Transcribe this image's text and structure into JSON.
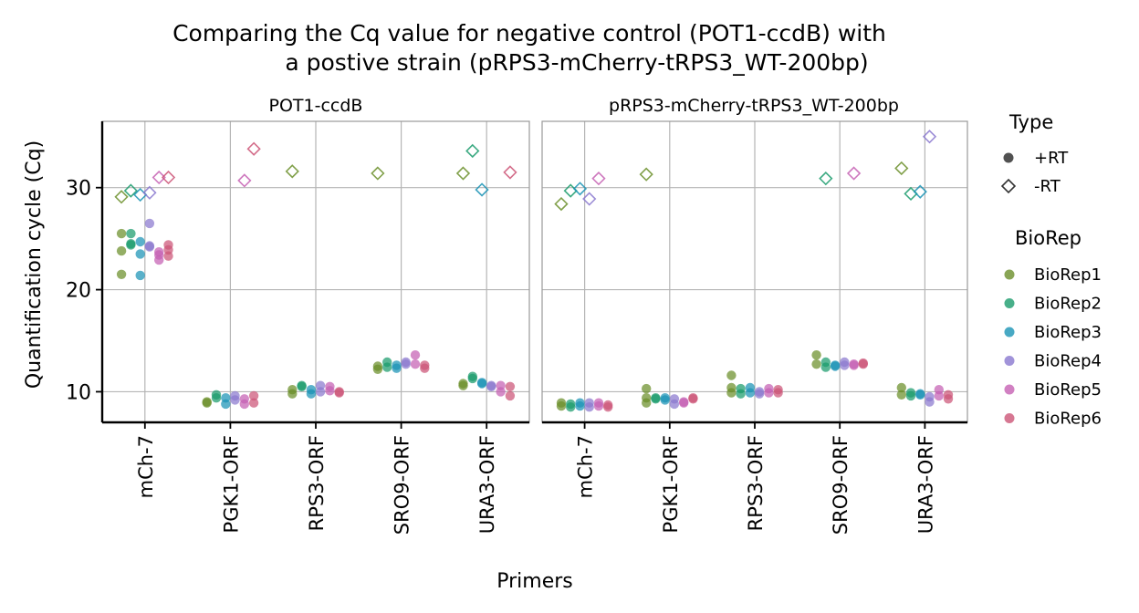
{
  "chart_data": {
    "type": "scatter",
    "title_line1": "Comparing the Cq value for negative control (POT1-ccdB) with",
    "title_line2": "a postive strain (pRPS3-mCherry-tRPS3_WT-200bp)",
    "xlabel": "Primers",
    "ylabel": "Quantification cycle (Cq)",
    "categories": [
      "mCh-7",
      "PGK1-ORF",
      "RPS3-ORF",
      "SRO9-ORF",
      "URA3-ORF"
    ],
    "ylim": [
      7,
      36.5
    ],
    "yticks": [
      10,
      20,
      30
    ],
    "grid": true,
    "legend_placement": "right",
    "type_legend": {
      "title": "Type",
      "items": [
        {
          "label": "+RT",
          "shape": "circle"
        },
        {
          "label": "-RT",
          "shape": "diamond"
        }
      ]
    },
    "biorep_legend": {
      "title": "BioRep",
      "items": [
        {
          "label": "BioRep1",
          "color": "#6b8f2a"
        },
        {
          "label": "BioRep2",
          "color": "#1a9b6c"
        },
        {
          "label": "BioRep3",
          "color": "#1a93b5"
        },
        {
          "label": "BioRep4",
          "color": "#8a78cf"
        },
        {
          "label": "BioRep5",
          "color": "#c560b3"
        },
        {
          "label": "BioRep6",
          "color": "#cc5577"
        }
      ]
    },
    "facets": [
      {
        "label": "POT1-ccdB",
        "points": [
          {
            "cat": 0,
            "rep": 1,
            "type": "+RT",
            "y": 25.5
          },
          {
            "cat": 0,
            "rep": 1,
            "type": "+RT",
            "y": 23.8
          },
          {
            "cat": 0,
            "rep": 1,
            "type": "+RT",
            "y": 21.5
          },
          {
            "cat": 0,
            "rep": 2,
            "type": "+RT",
            "y": 25.5
          },
          {
            "cat": 0,
            "rep": 2,
            "type": "+RT",
            "y": 24.4
          },
          {
            "cat": 0,
            "rep": 2,
            "type": "+RT",
            "y": 24.5
          },
          {
            "cat": 0,
            "rep": 3,
            "type": "+RT",
            "y": 24.7
          },
          {
            "cat": 0,
            "rep": 3,
            "type": "+RT",
            "y": 23.5
          },
          {
            "cat": 0,
            "rep": 3,
            "type": "+RT",
            "y": 21.4
          },
          {
            "cat": 0,
            "rep": 4,
            "type": "+RT",
            "y": 26.5
          },
          {
            "cat": 0,
            "rep": 4,
            "type": "+RT",
            "y": 24.3
          },
          {
            "cat": 0,
            "rep": 4,
            "type": "+RT",
            "y": 24.2
          },
          {
            "cat": 0,
            "rep": 5,
            "type": "+RT",
            "y": 23.7
          },
          {
            "cat": 0,
            "rep": 5,
            "type": "+RT",
            "y": 23.4
          },
          {
            "cat": 0,
            "rep": 5,
            "type": "+RT",
            "y": 22.9
          },
          {
            "cat": 0,
            "rep": 6,
            "type": "+RT",
            "y": 24.4
          },
          {
            "cat": 0,
            "rep": 6,
            "type": "+RT",
            "y": 23.9
          },
          {
            "cat": 0,
            "rep": 6,
            "type": "+RT",
            "y": 23.3
          },
          {
            "cat": 0,
            "rep": 1,
            "type": "-RT",
            "y": 29.1
          },
          {
            "cat": 0,
            "rep": 2,
            "type": "-RT",
            "y": 29.7
          },
          {
            "cat": 0,
            "rep": 3,
            "type": "-RT",
            "y": 29.3
          },
          {
            "cat": 0,
            "rep": 4,
            "type": "-RT",
            "y": 29.5
          },
          {
            "cat": 0,
            "rep": 5,
            "type": "-RT",
            "y": 31.0
          },
          {
            "cat": 0,
            "rep": 6,
            "type": "-RT",
            "y": 31.0
          },
          {
            "cat": 1,
            "rep": 1,
            "type": "+RT",
            "y": 9.0
          },
          {
            "cat": 1,
            "rep": 1,
            "type": "+RT",
            "y": 8.9
          },
          {
            "cat": 1,
            "rep": 2,
            "type": "+RT",
            "y": 9.7
          },
          {
            "cat": 1,
            "rep": 2,
            "type": "+RT",
            "y": 9.4
          },
          {
            "cat": 1,
            "rep": 3,
            "type": "+RT",
            "y": 9.4
          },
          {
            "cat": 1,
            "rep": 3,
            "type": "+RT",
            "y": 8.8
          },
          {
            "cat": 1,
            "rep": 4,
            "type": "+RT",
            "y": 9.6
          },
          {
            "cat": 1,
            "rep": 4,
            "type": "+RT",
            "y": 9.2
          },
          {
            "cat": 1,
            "rep": 5,
            "type": "+RT",
            "y": 9.3
          },
          {
            "cat": 1,
            "rep": 5,
            "type": "+RT",
            "y": 8.8
          },
          {
            "cat": 1,
            "rep": 6,
            "type": "+RT",
            "y": 9.6
          },
          {
            "cat": 1,
            "rep": 6,
            "type": "+RT",
            "y": 8.9
          },
          {
            "cat": 1,
            "rep": 5,
            "type": "-RT",
            "y": 30.7
          },
          {
            "cat": 1,
            "rep": 6,
            "type": "-RT",
            "y": 33.8
          },
          {
            "cat": 2,
            "rep": 1,
            "type": "+RT",
            "y": 10.2
          },
          {
            "cat": 2,
            "rep": 1,
            "type": "+RT",
            "y": 9.8
          },
          {
            "cat": 2,
            "rep": 2,
            "type": "+RT",
            "y": 10.6
          },
          {
            "cat": 2,
            "rep": 2,
            "type": "+RT",
            "y": 10.5
          },
          {
            "cat": 2,
            "rep": 3,
            "type": "+RT",
            "y": 10.2
          },
          {
            "cat": 2,
            "rep": 3,
            "type": "+RT",
            "y": 9.8
          },
          {
            "cat": 2,
            "rep": 4,
            "type": "+RT",
            "y": 10.6
          },
          {
            "cat": 2,
            "rep": 4,
            "type": "+RT",
            "y": 10.0
          },
          {
            "cat": 2,
            "rep": 5,
            "type": "+RT",
            "y": 10.5
          },
          {
            "cat": 2,
            "rep": 5,
            "type": "+RT",
            "y": 10.1
          },
          {
            "cat": 2,
            "rep": 6,
            "type": "+RT",
            "y": 10.0
          },
          {
            "cat": 2,
            "rep": 6,
            "type": "+RT",
            "y": 9.9
          },
          {
            "cat": 2,
            "rep": 1,
            "type": "-RT",
            "y": 31.6
          },
          {
            "cat": 3,
            "rep": 1,
            "type": "+RT",
            "y": 12.5
          },
          {
            "cat": 3,
            "rep": 1,
            "type": "+RT",
            "y": 12.2
          },
          {
            "cat": 3,
            "rep": 2,
            "type": "+RT",
            "y": 12.9
          },
          {
            "cat": 3,
            "rep": 2,
            "type": "+RT",
            "y": 12.4
          },
          {
            "cat": 3,
            "rep": 3,
            "type": "+RT",
            "y": 12.6
          },
          {
            "cat": 3,
            "rep": 3,
            "type": "+RT",
            "y": 12.3
          },
          {
            "cat": 3,
            "rep": 4,
            "type": "+RT",
            "y": 12.9
          },
          {
            "cat": 3,
            "rep": 4,
            "type": "+RT",
            "y": 12.7
          },
          {
            "cat": 3,
            "rep": 5,
            "type": "+RT",
            "y": 13.6
          },
          {
            "cat": 3,
            "rep": 5,
            "type": "+RT",
            "y": 12.7
          },
          {
            "cat": 3,
            "rep": 6,
            "type": "+RT",
            "y": 12.6
          },
          {
            "cat": 3,
            "rep": 6,
            "type": "+RT",
            "y": 12.3
          },
          {
            "cat": 3,
            "rep": 1,
            "type": "-RT",
            "y": 31.4
          },
          {
            "cat": 4,
            "rep": 1,
            "type": "+RT",
            "y": 10.8
          },
          {
            "cat": 4,
            "rep": 1,
            "type": "+RT",
            "y": 10.6
          },
          {
            "cat": 4,
            "rep": 2,
            "type": "+RT",
            "y": 11.5
          },
          {
            "cat": 4,
            "rep": 2,
            "type": "+RT",
            "y": 11.3
          },
          {
            "cat": 4,
            "rep": 3,
            "type": "+RT",
            "y": 10.9
          },
          {
            "cat": 4,
            "rep": 3,
            "type": "+RT",
            "y": 10.8
          },
          {
            "cat": 4,
            "rep": 4,
            "type": "+RT",
            "y": 10.6
          },
          {
            "cat": 4,
            "rep": 4,
            "type": "+RT",
            "y": 10.5
          },
          {
            "cat": 4,
            "rep": 5,
            "type": "+RT",
            "y": 10.6
          },
          {
            "cat": 4,
            "rep": 5,
            "type": "+RT",
            "y": 10.0
          },
          {
            "cat": 4,
            "rep": 6,
            "type": "+RT",
            "y": 10.5
          },
          {
            "cat": 4,
            "rep": 6,
            "type": "+RT",
            "y": 9.6
          },
          {
            "cat": 4,
            "rep": 1,
            "type": "-RT",
            "y": 31.4
          },
          {
            "cat": 4,
            "rep": 2,
            "type": "-RT",
            "y": 33.6
          },
          {
            "cat": 4,
            "rep": 3,
            "type": "-RT",
            "y": 29.8
          },
          {
            "cat": 4,
            "rep": 6,
            "type": "-RT",
            "y": 31.5
          }
        ]
      },
      {
        "label": "pRPS3-mCherry-tRPS3_WT-200bp",
        "points": [
          {
            "cat": 0,
            "rep": 1,
            "type": "+RT",
            "y": 8.9
          },
          {
            "cat": 0,
            "rep": 1,
            "type": "+RT",
            "y": 8.6
          },
          {
            "cat": 0,
            "rep": 2,
            "type": "+RT",
            "y": 8.8
          },
          {
            "cat": 0,
            "rep": 2,
            "type": "+RT",
            "y": 8.5
          },
          {
            "cat": 0,
            "rep": 3,
            "type": "+RT",
            "y": 8.9
          },
          {
            "cat": 0,
            "rep": 3,
            "type": "+RT",
            "y": 8.6
          },
          {
            "cat": 0,
            "rep": 4,
            "type": "+RT",
            "y": 8.9
          },
          {
            "cat": 0,
            "rep": 4,
            "type": "+RT",
            "y": 8.5
          },
          {
            "cat": 0,
            "rep": 5,
            "type": "+RT",
            "y": 8.9
          },
          {
            "cat": 0,
            "rep": 5,
            "type": "+RT",
            "y": 8.6
          },
          {
            "cat": 0,
            "rep": 6,
            "type": "+RT",
            "y": 8.7
          },
          {
            "cat": 0,
            "rep": 6,
            "type": "+RT",
            "y": 8.5
          },
          {
            "cat": 0,
            "rep": 1,
            "type": "-RT",
            "y": 28.4
          },
          {
            "cat": 0,
            "rep": 2,
            "type": "-RT",
            "y": 29.7
          },
          {
            "cat": 0,
            "rep": 3,
            "type": "-RT",
            "y": 29.9
          },
          {
            "cat": 0,
            "rep": 4,
            "type": "-RT",
            "y": 28.9
          },
          {
            "cat": 0,
            "rep": 5,
            "type": "-RT",
            "y": 30.9
          },
          {
            "cat": 1,
            "rep": 1,
            "type": "+RT",
            "y": 10.3
          },
          {
            "cat": 1,
            "rep": 1,
            "type": "+RT",
            "y": 9.4
          },
          {
            "cat": 1,
            "rep": 1,
            "type": "+RT",
            "y": 8.9
          },
          {
            "cat": 1,
            "rep": 2,
            "type": "+RT",
            "y": 9.4
          },
          {
            "cat": 1,
            "rep": 2,
            "type": "+RT",
            "y": 9.3
          },
          {
            "cat": 1,
            "rep": 3,
            "type": "+RT",
            "y": 9.4
          },
          {
            "cat": 1,
            "rep": 3,
            "type": "+RT",
            "y": 9.2
          },
          {
            "cat": 1,
            "rep": 4,
            "type": "+RT",
            "y": 9.3
          },
          {
            "cat": 1,
            "rep": 4,
            "type": "+RT",
            "y": 8.8
          },
          {
            "cat": 1,
            "rep": 5,
            "type": "+RT",
            "y": 9.0
          },
          {
            "cat": 1,
            "rep": 5,
            "type": "+RT",
            "y": 8.9
          },
          {
            "cat": 1,
            "rep": 6,
            "type": "+RT",
            "y": 9.4
          },
          {
            "cat": 1,
            "rep": 6,
            "type": "+RT",
            "y": 9.3
          },
          {
            "cat": 1,
            "rep": 1,
            "type": "-RT",
            "y": 31.3
          },
          {
            "cat": 2,
            "rep": 1,
            "type": "+RT",
            "y": 11.6
          },
          {
            "cat": 2,
            "rep": 1,
            "type": "+RT",
            "y": 10.4
          },
          {
            "cat": 2,
            "rep": 1,
            "type": "+RT",
            "y": 9.9
          },
          {
            "cat": 2,
            "rep": 2,
            "type": "+RT",
            "y": 10.3
          },
          {
            "cat": 2,
            "rep": 2,
            "type": "+RT",
            "y": 9.8
          },
          {
            "cat": 2,
            "rep": 3,
            "type": "+RT",
            "y": 10.4
          },
          {
            "cat": 2,
            "rep": 3,
            "type": "+RT",
            "y": 9.9
          },
          {
            "cat": 2,
            "rep": 4,
            "type": "+RT",
            "y": 10.0
          },
          {
            "cat": 2,
            "rep": 4,
            "type": "+RT",
            "y": 9.8
          },
          {
            "cat": 2,
            "rep": 5,
            "type": "+RT",
            "y": 10.3
          },
          {
            "cat": 2,
            "rep": 5,
            "type": "+RT",
            "y": 9.9
          },
          {
            "cat": 2,
            "rep": 6,
            "type": "+RT",
            "y": 10.2
          },
          {
            "cat": 2,
            "rep": 6,
            "type": "+RT",
            "y": 9.9
          },
          {
            "cat": 3,
            "rep": 1,
            "type": "+RT",
            "y": 13.6
          },
          {
            "cat": 3,
            "rep": 1,
            "type": "+RT",
            "y": 12.7
          },
          {
            "cat": 3,
            "rep": 2,
            "type": "+RT",
            "y": 12.9
          },
          {
            "cat": 3,
            "rep": 2,
            "type": "+RT",
            "y": 12.4
          },
          {
            "cat": 3,
            "rep": 3,
            "type": "+RT",
            "y": 12.6
          },
          {
            "cat": 3,
            "rep": 3,
            "type": "+RT",
            "y": 12.5
          },
          {
            "cat": 3,
            "rep": 4,
            "type": "+RT",
            "y": 12.9
          },
          {
            "cat": 3,
            "rep": 4,
            "type": "+RT",
            "y": 12.6
          },
          {
            "cat": 3,
            "rep": 5,
            "type": "+RT",
            "y": 12.7
          },
          {
            "cat": 3,
            "rep": 5,
            "type": "+RT",
            "y": 12.6
          },
          {
            "cat": 3,
            "rep": 6,
            "type": "+RT",
            "y": 12.8
          },
          {
            "cat": 3,
            "rep": 6,
            "type": "+RT",
            "y": 12.7
          },
          {
            "cat": 3,
            "rep": 2,
            "type": "-RT",
            "y": 30.9
          },
          {
            "cat": 3,
            "rep": 5,
            "type": "-RT",
            "y": 31.4
          },
          {
            "cat": 4,
            "rep": 1,
            "type": "+RT",
            "y": 10.4
          },
          {
            "cat": 4,
            "rep": 1,
            "type": "+RT",
            "y": 9.7
          },
          {
            "cat": 4,
            "rep": 2,
            "type": "+RT",
            "y": 9.9
          },
          {
            "cat": 4,
            "rep": 2,
            "type": "+RT",
            "y": 9.6
          },
          {
            "cat": 4,
            "rep": 3,
            "type": "+RT",
            "y": 9.8
          },
          {
            "cat": 4,
            "rep": 3,
            "type": "+RT",
            "y": 9.7
          },
          {
            "cat": 4,
            "rep": 4,
            "type": "+RT",
            "y": 9.5
          },
          {
            "cat": 4,
            "rep": 4,
            "type": "+RT",
            "y": 9.0
          },
          {
            "cat": 4,
            "rep": 5,
            "type": "+RT",
            "y": 10.2
          },
          {
            "cat": 4,
            "rep": 5,
            "type": "+RT",
            "y": 9.6
          },
          {
            "cat": 4,
            "rep": 6,
            "type": "+RT",
            "y": 9.7
          },
          {
            "cat": 4,
            "rep": 6,
            "type": "+RT",
            "y": 9.3
          },
          {
            "cat": 4,
            "rep": 1,
            "type": "-RT",
            "y": 31.9
          },
          {
            "cat": 4,
            "rep": 2,
            "type": "-RT",
            "y": 29.4
          },
          {
            "cat": 4,
            "rep": 3,
            "type": "-RT",
            "y": 29.6
          },
          {
            "cat": 4,
            "rep": 4,
            "type": "-RT",
            "y": 35.0
          }
        ]
      }
    ]
  }
}
